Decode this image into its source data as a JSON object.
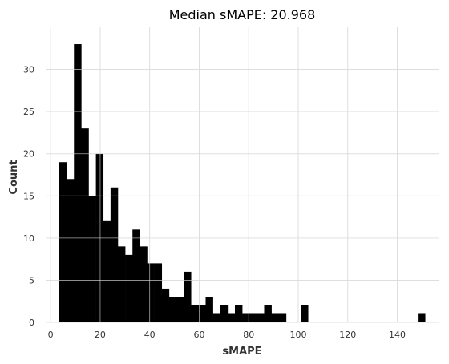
{
  "chart_data": {
    "type": "bar",
    "title": "Median sMAPE: 20.968",
    "xlabel": "sMAPE",
    "ylabel": "Count",
    "xlim": [
      -2,
      157
    ],
    "ylim": [
      0,
      35
    ],
    "grid": true,
    "legend": "none",
    "x_ticks": [
      0,
      20,
      40,
      60,
      80,
      100,
      120,
      140
    ],
    "y_ticks": [
      0,
      5,
      10,
      15,
      20,
      25,
      30
    ],
    "bar_color": "#000000",
    "bin_width": 2.955,
    "bins": [
      {
        "start": 3.5,
        "count": 19
      },
      {
        "start": 6.455,
        "count": 17
      },
      {
        "start": 9.41,
        "count": 33
      },
      {
        "start": 12.365,
        "count": 23
      },
      {
        "start": 15.32,
        "count": 15
      },
      {
        "start": 18.275,
        "count": 20
      },
      {
        "start": 21.23,
        "count": 12
      },
      {
        "start": 24.185,
        "count": 16
      },
      {
        "start": 27.14,
        "count": 9
      },
      {
        "start": 30.095,
        "count": 8
      },
      {
        "start": 33.05,
        "count": 11
      },
      {
        "start": 36.005,
        "count": 9
      },
      {
        "start": 38.96,
        "count": 7
      },
      {
        "start": 41.915,
        "count": 7
      },
      {
        "start": 44.87,
        "count": 4
      },
      {
        "start": 47.825,
        "count": 3
      },
      {
        "start": 50.78,
        "count": 3
      },
      {
        "start": 53.735,
        "count": 6
      },
      {
        "start": 56.69,
        "count": 2
      },
      {
        "start": 59.645,
        "count": 2
      },
      {
        "start": 62.6,
        "count": 3
      },
      {
        "start": 65.555,
        "count": 1
      },
      {
        "start": 68.51,
        "count": 2
      },
      {
        "start": 71.465,
        "count": 1
      },
      {
        "start": 74.42,
        "count": 2
      },
      {
        "start": 77.375,
        "count": 1
      },
      {
        "start": 80.33,
        "count": 1
      },
      {
        "start": 83.285,
        "count": 1
      },
      {
        "start": 86.24,
        "count": 2
      },
      {
        "start": 89.195,
        "count": 1
      },
      {
        "start": 92.15,
        "count": 1
      },
      {
        "start": 101.015,
        "count": 2
      },
      {
        "start": 148.295,
        "count": 1
      }
    ]
  }
}
